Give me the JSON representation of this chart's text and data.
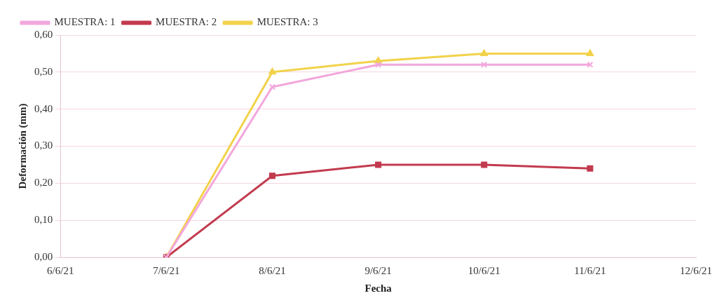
{
  "chart_data": {
    "type": "line",
    "xlabel": "Fecha",
    "ylabel": "Deformación (mm)",
    "x": [
      "--06-07",
      "--06-08",
      "--06-09",
      "--06-10",
      "--06-11"
    ],
    "series": [
      {
        "name": "MUESTRA: 1",
        "color": "#f2a7dc",
        "marker": "cross",
        "values": [
          0,
          0.46,
          0.52,
          0.52,
          0.52
        ]
      },
      {
        "name": "MUESTRA: 2",
        "color": "#c23a4e",
        "marker": "square",
        "values": [
          0,
          0.22,
          0.25,
          0.25,
          0.24
        ]
      },
      {
        "name": "MUESTRA: 3",
        "color": "#f2d24a",
        "marker": "triangle",
        "values": [
          0,
          0.5,
          0.53,
          0.55,
          0.55
        ]
      }
    ],
    "xlim": [
      "--06-06",
      "--06-12"
    ],
    "xticks": [
      {
        "value": "--06-06",
        "label": "6/6/21"
      },
      {
        "value": "--06-07",
        "label": "7/6/21"
      },
      {
        "value": "--06-08",
        "label": "8/6/21"
      },
      {
        "value": "--06-09",
        "label": "9/6/21"
      },
      {
        "value": "--06-10",
        "label": "10/6/21"
      },
      {
        "value": "--06-11",
        "label": "11/6/21"
      },
      {
        "value": "--06-12",
        "label": "12/6/21"
      }
    ],
    "ylim": [
      0,
      0.6
    ],
    "yticks": [
      {
        "value": 0,
        "label": "0,00"
      },
      {
        "value": 0.1,
        "label": "0,10"
      },
      {
        "value": 0.2,
        "label": "0,20"
      },
      {
        "value": 0.3,
        "label": "0,30"
      },
      {
        "value": 0.4,
        "label": "0,40"
      },
      {
        "value": 0.5,
        "label": "0,50"
      },
      {
        "value": 0.6,
        "label": "0,60"
      }
    ],
    "grid": "y",
    "legend": "top left",
    "line_style": "solid"
  }
}
